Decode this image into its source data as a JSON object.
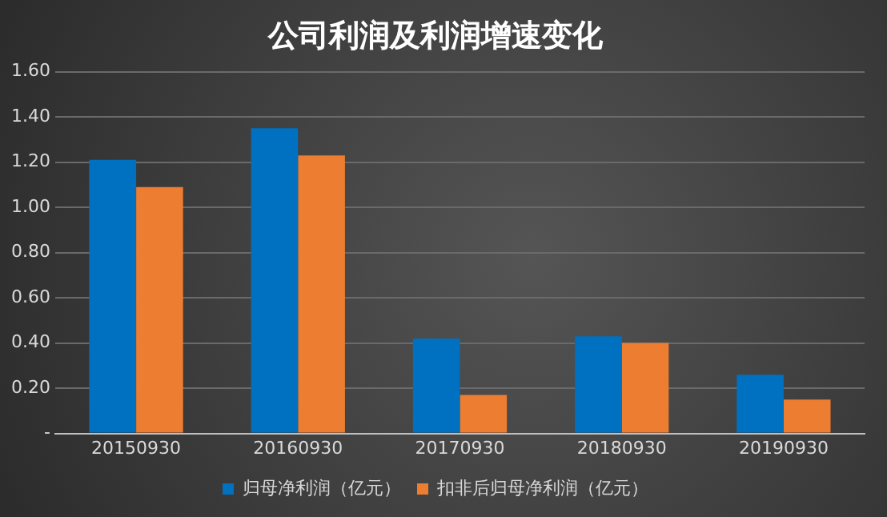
{
  "chart_data": {
    "type": "bar",
    "title": "公司利润及利润增速变化",
    "categories": [
      "20150930",
      "20160930",
      "20170930",
      "20180930",
      "20190930"
    ],
    "series": [
      {
        "name": "归母净利润（亿元）",
        "color": "#0070c0",
        "values": [
          1.21,
          1.35,
          0.42,
          0.43,
          0.26
        ]
      },
      {
        "name": "扣非后归母净利润（亿元）",
        "color": "#ed7d31",
        "values": [
          1.09,
          1.23,
          0.17,
          0.4,
          0.15
        ]
      }
    ],
    "ylim": [
      0,
      1.6
    ],
    "yticks": [
      {
        "value": 0,
        "label": "-"
      },
      {
        "value": 0.2,
        "label": "0.20"
      },
      {
        "value": 0.4,
        "label": "0.40"
      },
      {
        "value": 0.6,
        "label": "0.60"
      },
      {
        "value": 0.8,
        "label": "0.80"
      },
      {
        "value": 1.0,
        "label": "1.00"
      },
      {
        "value": 1.2,
        "label": "1.20"
      },
      {
        "value": 1.4,
        "label": "1.40"
      },
      {
        "value": 1.6,
        "label": "1.60"
      }
    ],
    "grid": "y",
    "legend": "bottom"
  }
}
